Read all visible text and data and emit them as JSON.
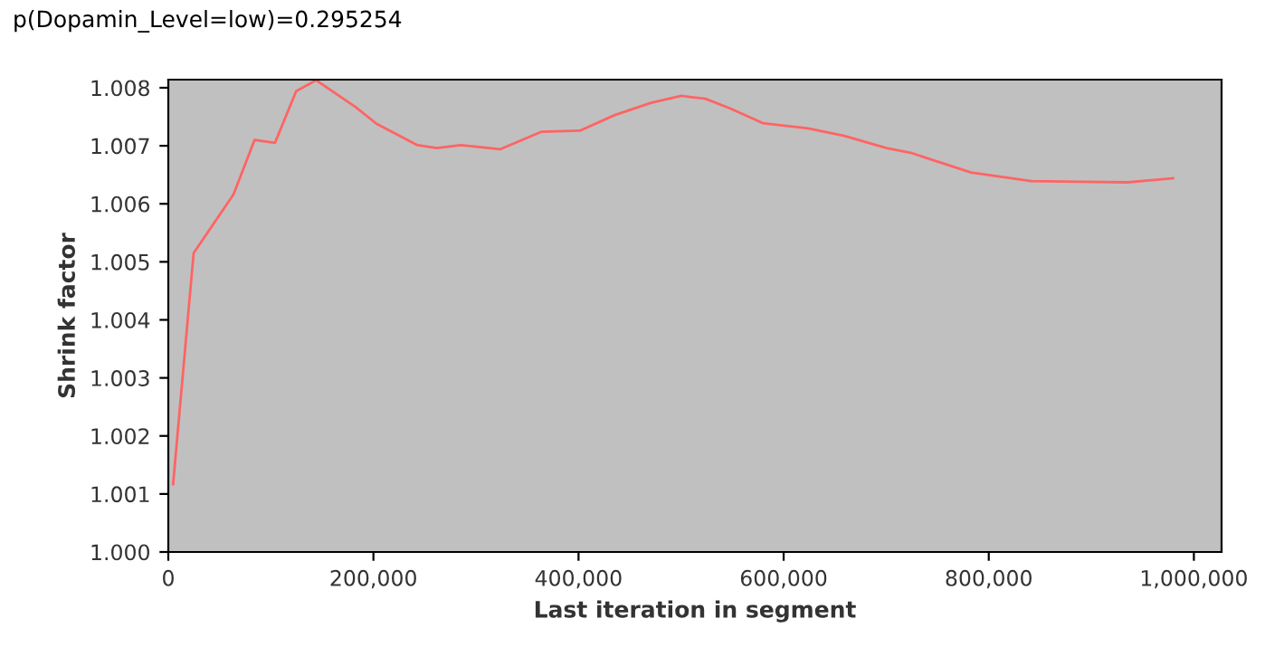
{
  "chart_data": {
    "type": "line",
    "title": "p(Dopamin_Level=low)=0.295254",
    "xlabel": "Last iteration in segment",
    "ylabel": "Shrink factor",
    "x": [
      4700,
      24700,
      63500,
      84100,
      104000,
      124700,
      144100,
      182400,
      203000,
      243000,
      261800,
      285300,
      323500,
      363500,
      401200,
      435400,
      470700,
      500200,
      523700,
      547200,
      579600,
      623800,
      659100,
      700300,
      723800,
      782700,
      841500,
      888600,
      935600,
      979700
    ],
    "series": [
      {
        "color": "#ff6464",
        "values": [
          1.00117,
          1.00515,
          1.00616,
          1.0071,
          1.00705,
          1.00794,
          1.00813,
          1.00767,
          1.00738,
          1.00701,
          1.00696,
          1.00701,
          1.00694,
          1.00724,
          1.00726,
          1.00753,
          1.00774,
          1.00786,
          1.00781,
          1.00765,
          1.00739,
          1.0073,
          1.00717,
          1.00696,
          1.00688,
          1.00654,
          1.00639,
          1.00638,
          1.00637,
          1.00644
        ]
      }
    ],
    "xlim": [
      0,
      1027000
    ],
    "ylim": [
      1.0,
      1.00814
    ],
    "xticks": [
      0,
      {
        "value": 200000,
        "label": "200,000"
      },
      {
        "value": 400000,
        "label": "400,000"
      },
      {
        "value": 600000,
        "label": "600,000"
      },
      {
        "value": 800000,
        "label": "800,000"
      },
      {
        "value": 1000000,
        "label": "1,000,000"
      }
    ],
    "yticks": [
      {
        "value": 1.0,
        "label": "1.000"
      },
      {
        "value": 1.001,
        "label": "1.001"
      },
      {
        "value": 1.002,
        "label": "1.002"
      },
      {
        "value": 1.003,
        "label": "1.003"
      },
      {
        "value": 1.004,
        "label": "1.004"
      },
      {
        "value": 1.005,
        "label": "1.005"
      },
      {
        "value": 1.006,
        "label": "1.006"
      },
      {
        "value": 1.007,
        "label": "1.007"
      },
      {
        "value": 1.008,
        "label": "1.008"
      }
    ],
    "grid": false,
    "marker": "none",
    "line_style": "solid"
  }
}
